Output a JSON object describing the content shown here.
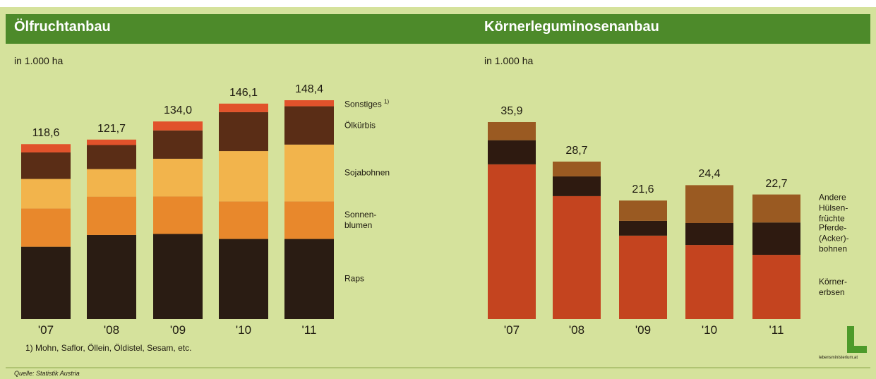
{
  "chart_data": [
    {
      "type": "stacked_bar",
      "title": "Ölfruchtanbau",
      "subtitle": "in 1.000 ha",
      "categories": [
        "'07",
        "'08",
        "'09",
        "'10",
        "'11"
      ],
      "series": [
        {
          "name": "Raps",
          "color": "#2a1c13",
          "values": [
            49,
            57,
            57.7,
            54.3,
            54.3
          ]
        },
        {
          "name": "Sonnen-\nblumen",
          "color": "#e8882c",
          "values": [
            26,
            26,
            25.5,
            25.5,
            25.5
          ]
        },
        {
          "name": "Sojabohnen",
          "color": "#f2b44c",
          "values": [
            20,
            18.7,
            25.5,
            34.1,
            38.5
          ]
        },
        {
          "name": "Ölkürbis",
          "color": "#5a2d16",
          "values": [
            18,
            16.3,
            19.2,
            26.4,
            26
          ]
        },
        {
          "name": "Sonstiges",
          "color": "#e1522b",
          "values": [
            5.6,
            3.7,
            6.1,
            5.8,
            4.1
          ]
        }
      ],
      "legend_note": "1)",
      "totals": [
        118.6,
        121.7,
        134.0,
        146.1,
        148.4
      ],
      "totals_labels": [
        "118,6",
        "121,7",
        "134,0",
        "146,1",
        "148,4"
      ],
      "footnote": "1) Mohn, Saflor, Öllein, Öldistel, Sesam, etc."
    },
    {
      "type": "stacked_bar",
      "title": "Körnerleguminosenanbau",
      "subtitle": "in 1.000 ha",
      "categories": [
        "'07",
        "'08",
        "'09",
        "'10",
        "'11"
      ],
      "series": [
        {
          "name": "Körner-\nerbsen",
          "color": "#c4441f",
          "values": [
            28.2,
            22.4,
            15.2,
            13.5,
            11.7
          ]
        },
        {
          "name": "Pferde-\n(Acker)-\nbohnen",
          "color": "#2e1a10",
          "values": [
            4.4,
            3.6,
            2.7,
            4.0,
            5.9
          ]
        },
        {
          "name": "Andere\nHülsen-\nfrüchte",
          "color": "#9a5a22",
          "values": [
            3.3,
            2.7,
            3.7,
            6.9,
            5.1
          ]
        }
      ],
      "totals": [
        35.9,
        28.7,
        21.6,
        24.4,
        22.7
      ],
      "totals_labels": [
        "35,9",
        "28,7",
        "21,6",
        "24,4",
        "22,7"
      ],
      "logo": "lebensministerium.at"
    }
  ],
  "source": "Quelle: Statistik Austria"
}
